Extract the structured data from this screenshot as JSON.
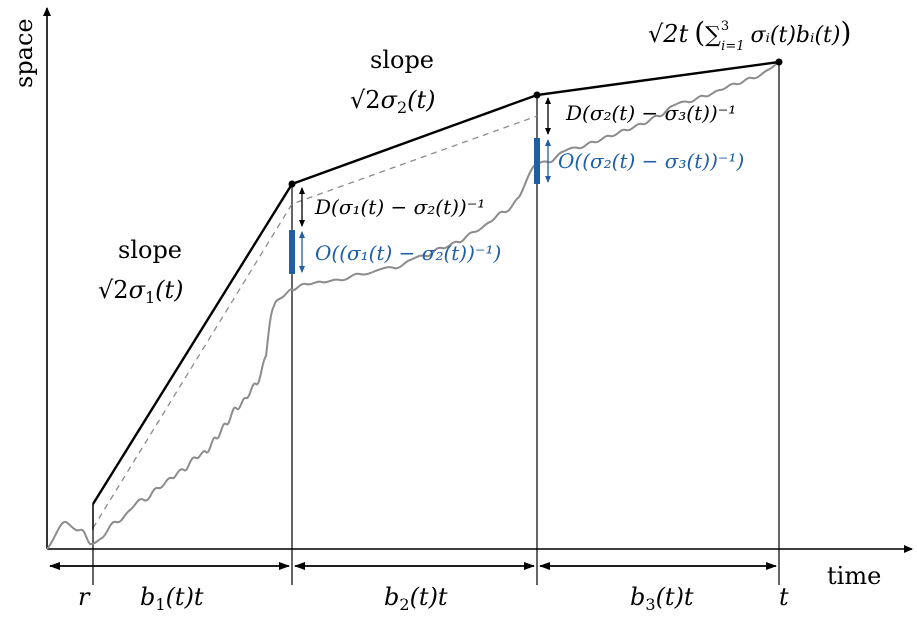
{
  "axes": {
    "y_label": "space",
    "x_label": "time"
  },
  "x_ticks": {
    "r": "r",
    "t": "t"
  },
  "intervals": [
    {
      "label_pre": "b",
      "sub": "1",
      "label_post": "(t)t"
    },
    {
      "label_pre": "b",
      "sub": "2",
      "label_post": "(t)t"
    },
    {
      "label_pre": "b",
      "sub": "3",
      "label_post": "(t)t"
    }
  ],
  "slopes": [
    {
      "word": "slope",
      "expr_root": "√2",
      "expr_sigma": "σ",
      "expr_sub": "1",
      "expr_tail": "(t)"
    },
    {
      "word": "slope",
      "expr_root": "√2",
      "expr_sigma": "σ",
      "expr_sub": "2",
      "expr_tail": "(t)"
    }
  ],
  "gaps": {
    "d1": "D(σ₁(t) − σ₂(t))⁻¹",
    "o1": "O((σ₁(t) − σ₂(t))⁻¹)",
    "d2": "D(σ₂(t) − σ₃(t))⁻¹",
    "o2": "O((σ₂(t) − σ₃(t))⁻¹)"
  },
  "endpoint": {
    "label_root": "√2t",
    "label_sum": "∑",
    "label_sup": "3",
    "label_sub": "i=1",
    "label_body": "σᵢ(t)bᵢ(t)",
    "paren_open": "(",
    "paren_close": ")"
  },
  "colors": {
    "main": "#000000",
    "path": "#8c8c8c",
    "dashed": "#8c8c8c",
    "accent": "#1f5fa8"
  }
}
